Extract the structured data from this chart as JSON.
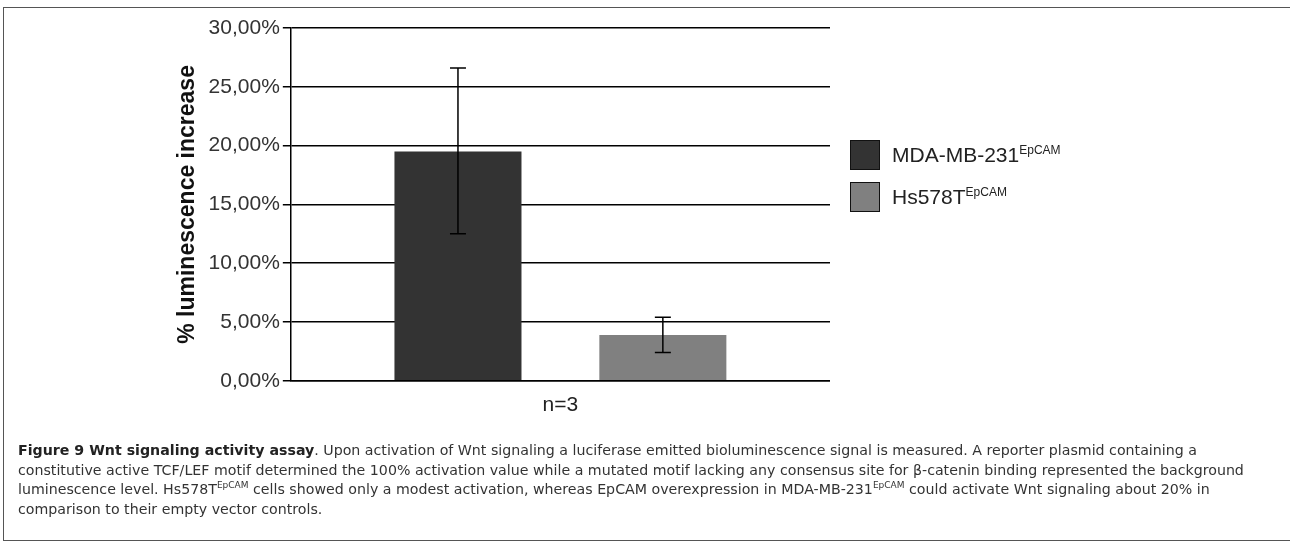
{
  "chart_data": {
    "type": "bar",
    "ylabel": "% luminescence increase",
    "categories": [
      "n=3"
    ],
    "series": [
      {
        "name": "MDA-MB-231$^{EpCAM}$",
        "color": "#333333",
        "values": [
          19.5
        ],
        "errors": [
          [
            12.5,
            26.6
          ]
        ]
      },
      {
        "name": "Hs578T$^{EpCAM}$",
        "color": "#808080",
        "values": [
          3.9
        ],
        "errors": [
          [
            2.4,
            5.4
          ]
        ]
      }
    ],
    "ylim": [
      0,
      30
    ],
    "yticks": [
      {
        "value": 0,
        "label": "0,00%"
      },
      {
        "value": 5,
        "label": "5,00%"
      },
      {
        "value": 10,
        "label": "10,00%"
      },
      {
        "value": 15,
        "label": "15,00%"
      },
      {
        "value": 20,
        "label": "20,00%"
      },
      {
        "value": 25,
        "label": "25,00%"
      },
      {
        "value": 30,
        "label": "30,00%"
      }
    ],
    "grid": "y",
    "legend": "right",
    "annotations": [
      "Figure 9 Wnt signaling activity assay",
      ". Upon activation of Wnt signaling a luciferase emitted bioluminescence signal is measured. A reporter plasmid containing a constitutive active TCF/LEF motif determined the 100% activation value while a mutated motif lacking any consensus site for β-catenin binding represented the background luminescence level. Hs578T$^{EpCAM}$ cells showed only a modest activation, whereas EpCAM overexpression in MDA-MB-231$^{EpCAM}$ could activate Wnt signaling about 20% in comparison to their empty vector controls."
    ]
  }
}
